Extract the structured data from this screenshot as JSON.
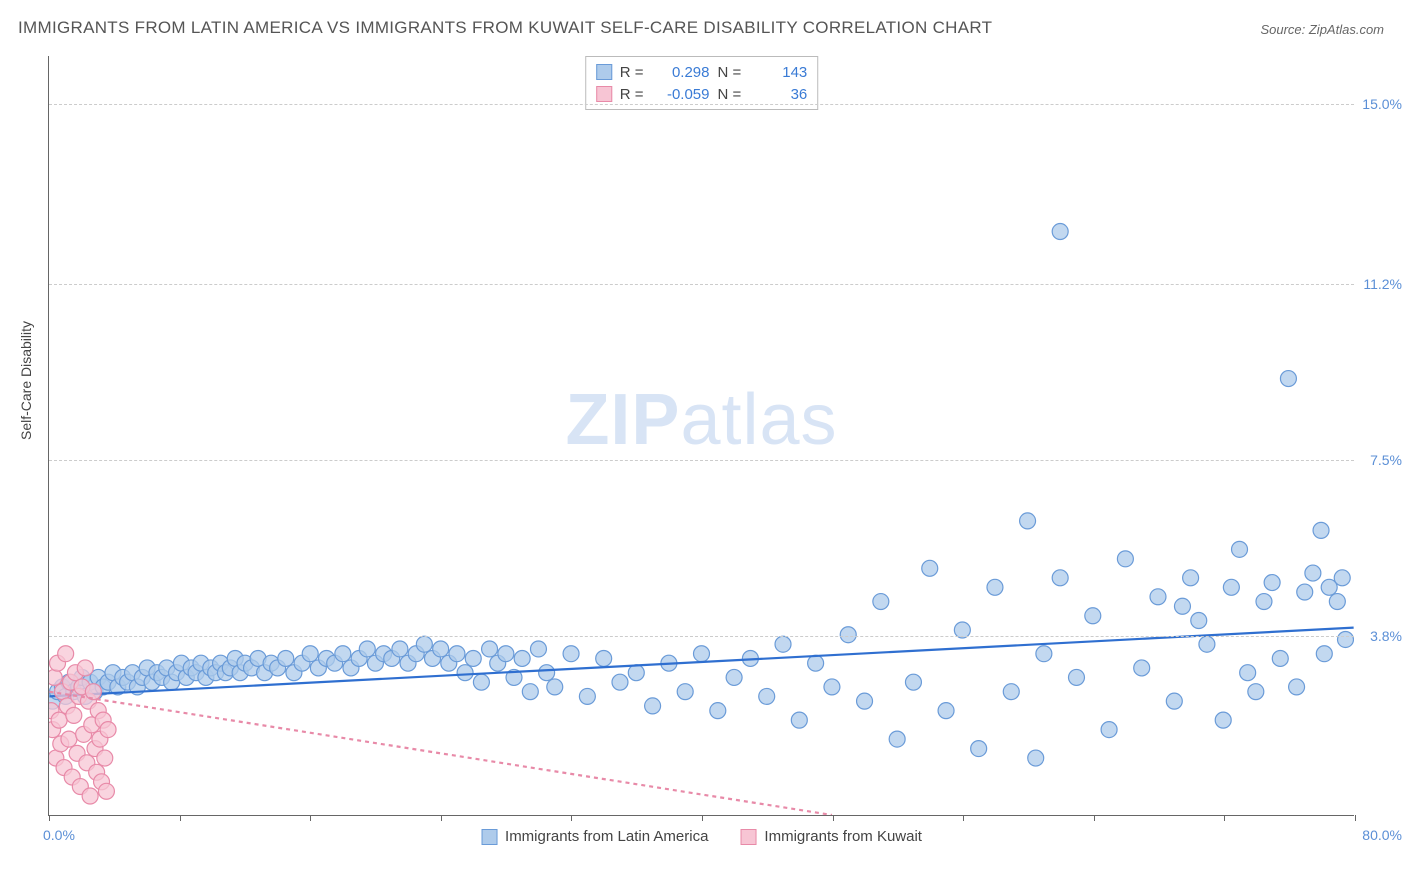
{
  "title": "IMMIGRANTS FROM LATIN AMERICA VS IMMIGRANTS FROM KUWAIT SELF-CARE DISABILITY CORRELATION CHART",
  "source": "Source: ZipAtlas.com",
  "y_axis_title": "Self-Care Disability",
  "watermark_bold": "ZIP",
  "watermark_rest": "atlas",
  "chart": {
    "type": "scatter",
    "background_color": "#ffffff",
    "grid_color": "#cccccc",
    "axis_color": "#666666",
    "xlim": [
      0,
      80
    ],
    "ylim": [
      0,
      16
    ],
    "x_min_label": "0.0%",
    "x_max_label": "80.0%",
    "y_ticks": [
      {
        "value": 3.8,
        "label": "3.8%"
      },
      {
        "value": 7.5,
        "label": "7.5%"
      },
      {
        "value": 11.2,
        "label": "11.2%"
      },
      {
        "value": 15.0,
        "label": "15.0%"
      }
    ],
    "x_ticks": [
      0,
      8,
      16,
      24,
      32,
      40,
      48,
      56,
      64,
      72,
      80
    ],
    "tick_label_color": "#5b8fd6",
    "marker_radius": 8,
    "marker_stroke_width": 1.2,
    "trend_line_width": 2.2,
    "series": [
      {
        "name": "Immigrants from Latin America",
        "marker_fill": "#aecbeb",
        "marker_stroke": "#6a9bd8",
        "trend_color": "#2f6fd0",
        "trend_dash": "none",
        "R": "0.298",
        "N": "143",
        "trend": {
          "x1": 0,
          "y1": 2.5,
          "x2": 80,
          "y2": 3.95
        },
        "points": [
          [
            0.2,
            2.4
          ],
          [
            0.5,
            2.6
          ],
          [
            0.8,
            2.7
          ],
          [
            1.0,
            2.5
          ],
          [
            1.2,
            2.8
          ],
          [
            1.5,
            2.6
          ],
          [
            1.8,
            2.7
          ],
          [
            2.0,
            2.9
          ],
          [
            2.2,
            2.5
          ],
          [
            2.5,
            2.8
          ],
          [
            2.8,
            2.6
          ],
          [
            3.0,
            2.9
          ],
          [
            3.3,
            2.7
          ],
          [
            3.6,
            2.8
          ],
          [
            3.9,
            3.0
          ],
          [
            4.2,
            2.7
          ],
          [
            4.5,
            2.9
          ],
          [
            4.8,
            2.8
          ],
          [
            5.1,
            3.0
          ],
          [
            5.4,
            2.7
          ],
          [
            5.7,
            2.9
          ],
          [
            6.0,
            3.1
          ],
          [
            6.3,
            2.8
          ],
          [
            6.6,
            3.0
          ],
          [
            6.9,
            2.9
          ],
          [
            7.2,
            3.1
          ],
          [
            7.5,
            2.8
          ],
          [
            7.8,
            3.0
          ],
          [
            8.1,
            3.2
          ],
          [
            8.4,
            2.9
          ],
          [
            8.7,
            3.1
          ],
          [
            9.0,
            3.0
          ],
          [
            9.3,
            3.2
          ],
          [
            9.6,
            2.9
          ],
          [
            9.9,
            3.1
          ],
          [
            10.2,
            3.0
          ],
          [
            10.5,
            3.2
          ],
          [
            10.8,
            3.0
          ],
          [
            11.1,
            3.1
          ],
          [
            11.4,
            3.3
          ],
          [
            11.7,
            3.0
          ],
          [
            12.0,
            3.2
          ],
          [
            12.4,
            3.1
          ],
          [
            12.8,
            3.3
          ],
          [
            13.2,
            3.0
          ],
          [
            13.6,
            3.2
          ],
          [
            14.0,
            3.1
          ],
          [
            14.5,
            3.3
          ],
          [
            15.0,
            3.0
          ],
          [
            15.5,
            3.2
          ],
          [
            16.0,
            3.4
          ],
          [
            16.5,
            3.1
          ],
          [
            17.0,
            3.3
          ],
          [
            17.5,
            3.2
          ],
          [
            18.0,
            3.4
          ],
          [
            18.5,
            3.1
          ],
          [
            19.0,
            3.3
          ],
          [
            19.5,
            3.5
          ],
          [
            20.0,
            3.2
          ],
          [
            20.5,
            3.4
          ],
          [
            21.0,
            3.3
          ],
          [
            21.5,
            3.5
          ],
          [
            22.0,
            3.2
          ],
          [
            22.5,
            3.4
          ],
          [
            23.0,
            3.6
          ],
          [
            23.5,
            3.3
          ],
          [
            24.0,
            3.5
          ],
          [
            24.5,
            3.2
          ],
          [
            25.0,
            3.4
          ],
          [
            25.5,
            3.0
          ],
          [
            26.0,
            3.3
          ],
          [
            26.5,
            2.8
          ],
          [
            27.0,
            3.5
          ],
          [
            27.5,
            3.2
          ],
          [
            28.0,
            3.4
          ],
          [
            28.5,
            2.9
          ],
          [
            29.0,
            3.3
          ],
          [
            29.5,
            2.6
          ],
          [
            30.0,
            3.5
          ],
          [
            30.5,
            3.0
          ],
          [
            31.0,
            2.7
          ],
          [
            32.0,
            3.4
          ],
          [
            33.0,
            2.5
          ],
          [
            34.0,
            3.3
          ],
          [
            35.0,
            2.8
          ],
          [
            36.0,
            3.0
          ],
          [
            37.0,
            2.3
          ],
          [
            38.0,
            3.2
          ],
          [
            39.0,
            2.6
          ],
          [
            40.0,
            3.4
          ],
          [
            41.0,
            2.2
          ],
          [
            42.0,
            2.9
          ],
          [
            43.0,
            3.3
          ],
          [
            44.0,
            2.5
          ],
          [
            45.0,
            3.6
          ],
          [
            46.0,
            2.0
          ],
          [
            47.0,
            3.2
          ],
          [
            48.0,
            2.7
          ],
          [
            49.0,
            3.8
          ],
          [
            50.0,
            2.4
          ],
          [
            51.0,
            4.5
          ],
          [
            52.0,
            1.6
          ],
          [
            53.0,
            2.8
          ],
          [
            54.0,
            5.2
          ],
          [
            55.0,
            2.2
          ],
          [
            56.0,
            3.9
          ],
          [
            57.0,
            1.4
          ],
          [
            58.0,
            4.8
          ],
          [
            59.0,
            2.6
          ],
          [
            60.0,
            6.2
          ],
          [
            60.5,
            1.2
          ],
          [
            61.0,
            3.4
          ],
          [
            62.0,
            5.0
          ],
          [
            62.0,
            12.3
          ],
          [
            63.0,
            2.9
          ],
          [
            64.0,
            4.2
          ],
          [
            65.0,
            1.8
          ],
          [
            66.0,
            5.4
          ],
          [
            67.0,
            3.1
          ],
          [
            68.0,
            4.6
          ],
          [
            69.0,
            2.4
          ],
          [
            69.5,
            4.4
          ],
          [
            70.0,
            5.0
          ],
          [
            70.5,
            4.1
          ],
          [
            71.0,
            3.6
          ],
          [
            72.0,
            2.0
          ],
          [
            72.5,
            4.8
          ],
          [
            73.0,
            5.6
          ],
          [
            73.5,
            3.0
          ],
          [
            74.0,
            2.6
          ],
          [
            74.5,
            4.5
          ],
          [
            75.0,
            4.9
          ],
          [
            75.5,
            3.3
          ],
          [
            76.0,
            9.2
          ],
          [
            76.5,
            2.7
          ],
          [
            77.0,
            4.7
          ],
          [
            77.5,
            5.1
          ],
          [
            78.0,
            6.0
          ],
          [
            78.2,
            3.4
          ],
          [
            78.5,
            4.8
          ],
          [
            79.0,
            4.5
          ],
          [
            79.3,
            5.0
          ],
          [
            79.5,
            3.7
          ]
        ]
      },
      {
        "name": "Immigrants from Kuwait",
        "marker_fill": "#f7c5d4",
        "marker_stroke": "#e88aa8",
        "trend_color": "#e88aa8",
        "trend_dash": "4,4",
        "R": "-0.059",
        "N": "36",
        "trend": {
          "x1": 0,
          "y1": 2.6,
          "x2": 48,
          "y2": 0
        },
        "points": [
          [
            0.1,
            2.2
          ],
          [
            0.2,
            1.8
          ],
          [
            0.3,
            2.9
          ],
          [
            0.4,
            1.2
          ],
          [
            0.5,
            3.2
          ],
          [
            0.6,
            2.0
          ],
          [
            0.7,
            1.5
          ],
          [
            0.8,
            2.6
          ],
          [
            0.9,
            1.0
          ],
          [
            1.0,
            3.4
          ],
          [
            1.1,
            2.3
          ],
          [
            1.2,
            1.6
          ],
          [
            1.3,
            2.8
          ],
          [
            1.4,
            0.8
          ],
          [
            1.5,
            2.1
          ],
          [
            1.6,
            3.0
          ],
          [
            1.7,
            1.3
          ],
          [
            1.8,
            2.5
          ],
          [
            1.9,
            0.6
          ],
          [
            2.0,
            2.7
          ],
          [
            2.1,
            1.7
          ],
          [
            2.2,
            3.1
          ],
          [
            2.3,
            1.1
          ],
          [
            2.4,
            2.4
          ],
          [
            2.5,
            0.4
          ],
          [
            2.6,
            1.9
          ],
          [
            2.7,
            2.6
          ],
          [
            2.8,
            1.4
          ],
          [
            2.9,
            0.9
          ],
          [
            3.0,
            2.2
          ],
          [
            3.1,
            1.6
          ],
          [
            3.2,
            0.7
          ],
          [
            3.3,
            2.0
          ],
          [
            3.4,
            1.2
          ],
          [
            3.5,
            0.5
          ],
          [
            3.6,
            1.8
          ]
        ]
      }
    ]
  },
  "stats_box": {
    "r_label": "R =",
    "n_label": "N ="
  },
  "legend": {
    "series1_label": "Immigrants from Latin America",
    "series2_label": "Immigrants from Kuwait"
  }
}
